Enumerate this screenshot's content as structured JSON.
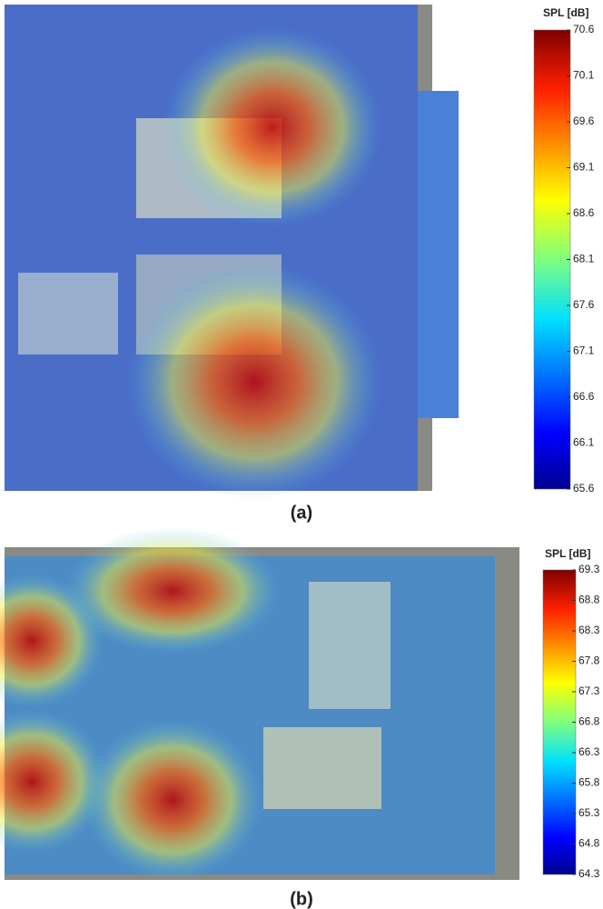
{
  "chart_data": [
    {
      "type": "heatmap",
      "label": "(a)",
      "colorbar_label": "SPL [dB]",
      "clim": [
        65.6,
        70.6
      ],
      "cticks": [
        65.6,
        66.1,
        66.6,
        67.1,
        67.6,
        68.1,
        68.6,
        69.1,
        69.6,
        70.1,
        70.6
      ]
    },
    {
      "type": "heatmap",
      "label": "(b)",
      "colorbar_label": "SPL [dB]",
      "clim": [
        64.3,
        69.3
      ],
      "cticks": [
        64.3,
        64.8,
        65.3,
        65.8,
        66.3,
        66.8,
        67.3,
        67.8,
        68.3,
        68.8,
        69.3
      ]
    }
  ]
}
